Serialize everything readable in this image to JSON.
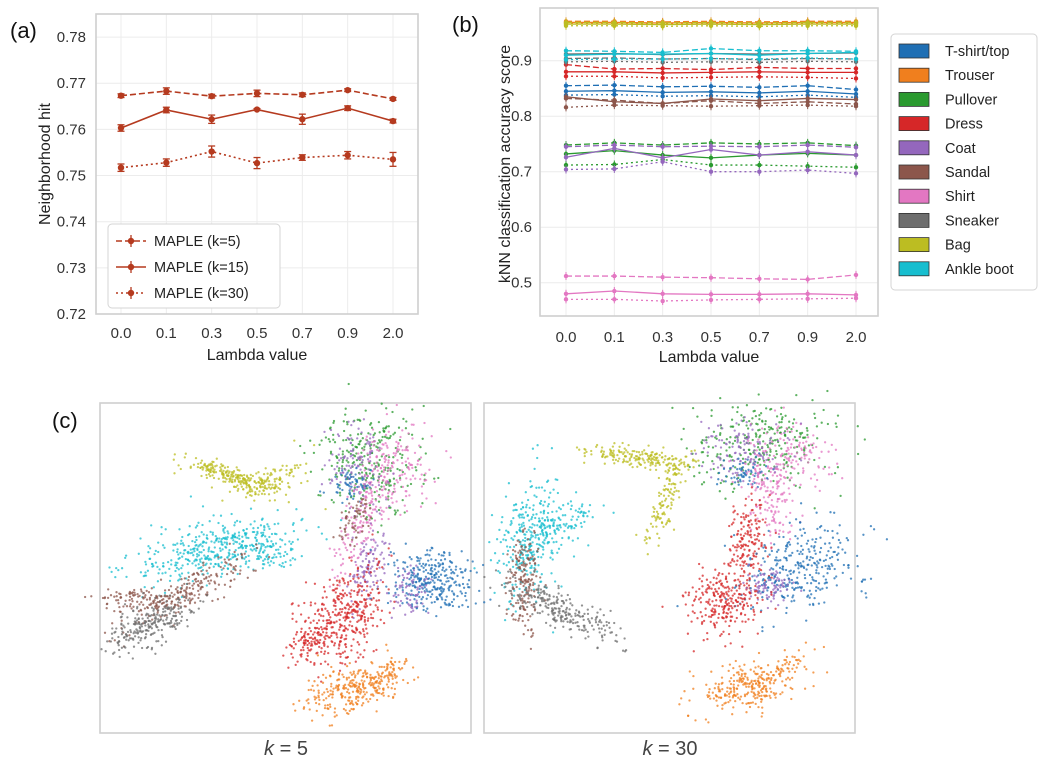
{
  "panels": {
    "a": {
      "label": "(a)"
    },
    "b": {
      "label": "(b)"
    },
    "c": {
      "label": "(c)"
    }
  },
  "chart_data": [
    {
      "type": "line",
      "panel": "(a)",
      "title": "",
      "xlabel": "Lambda value",
      "ylabel": "Neighborhood hit",
      "categories": [
        "0.0",
        "0.1",
        "0.3",
        "0.5",
        "0.7",
        "0.9",
        "2.0"
      ],
      "ylim": [
        0.72,
        0.785
      ],
      "yticks": [
        "0.72",
        "0.73",
        "0.74",
        "0.75",
        "0.76",
        "0.77",
        "0.78"
      ],
      "grid": true,
      "legend_position": "bottom-left",
      "series": [
        {
          "name": "MAPLE (k=5)",
          "style": "dashed",
          "color": "#b53a1f",
          "values": [
            0.7673,
            0.7683,
            0.7672,
            0.7678,
            0.7675,
            0.7685,
            0.7666
          ],
          "errors": [
            0.0004,
            0.0007,
            0.0004,
            0.0007,
            0.0004,
            0.0003,
            0.0003
          ]
        },
        {
          "name": "MAPLE (k=15)",
          "style": "solid",
          "color": "#b53a1f",
          "values": [
            0.7603,
            0.7642,
            0.7622,
            0.7643,
            0.7622,
            0.7646,
            0.7618
          ],
          "errors": [
            0.0007,
            0.0006,
            0.0009,
            0.0002,
            0.0011,
            0.0005,
            0.0004
          ]
        },
        {
          "name": "MAPLE (k=30)",
          "style": "dotted",
          "color": "#b53a1f",
          "values": [
            0.7517,
            0.7528,
            0.7552,
            0.7527,
            0.7539,
            0.7544,
            0.7535
          ],
          "errors": [
            0.0008,
            0.0008,
            0.0012,
            0.0012,
            0.0006,
            0.0008,
            0.0015
          ]
        }
      ]
    },
    {
      "type": "line",
      "panel": "(b)",
      "title": "",
      "xlabel": "Lambda value",
      "ylabel": "kNN classification accuracy score",
      "categories": [
        "0.0",
        "0.1",
        "0.3",
        "0.5",
        "0.7",
        "0.9",
        "2.0"
      ],
      "ylim": [
        0.44,
        0.995
      ],
      "yticks": [
        "0.5",
        "0.6",
        "0.7",
        "0.8",
        "0.9"
      ],
      "grid": true,
      "legend_position": "outside-right",
      "line_styles_note": "each class drawn with dashed (k=5), solid (k=15), dotted (k=30) lines",
      "series": [
        {
          "name": "T-shirt/top",
          "color": "#1f6fb4",
          "k5": [
            0.855,
            0.856,
            0.853,
            0.854,
            0.852,
            0.855,
            0.848
          ],
          "k15": [
            0.845,
            0.846,
            0.843,
            0.844,
            0.842,
            0.845,
            0.84
          ],
          "k30": [
            0.838,
            0.839,
            0.836,
            0.837,
            0.835,
            0.838,
            0.834
          ]
        },
        {
          "name": "Trouser",
          "color": "#f07f1e",
          "k5": [
            0.971,
            0.971,
            0.97,
            0.971,
            0.97,
            0.971,
            0.971
          ],
          "k15": [
            0.969,
            0.969,
            0.968,
            0.969,
            0.968,
            0.969,
            0.969
          ],
          "k30": [
            0.967,
            0.967,
            0.966,
            0.967,
            0.966,
            0.967,
            0.967
          ]
        },
        {
          "name": "Pullover",
          "color": "#2a9a2f",
          "k5": [
            0.748,
            0.752,
            0.748,
            0.752,
            0.75,
            0.752,
            0.747
          ],
          "k15": [
            0.732,
            0.738,
            0.73,
            0.725,
            0.73,
            0.733,
            0.73
          ],
          "k30": [
            0.712,
            0.713,
            0.722,
            0.712,
            0.712,
            0.71,
            0.708
          ]
        },
        {
          "name": "Dress",
          "color": "#d62728",
          "k5": [
            0.893,
            0.885,
            0.886,
            0.884,
            0.888,
            0.886,
            0.886
          ],
          "k15": [
            0.88,
            0.88,
            0.878,
            0.879,
            0.88,
            0.879,
            0.879
          ],
          "k30": [
            0.872,
            0.872,
            0.869,
            0.87,
            0.871,
            0.87,
            0.868
          ]
        },
        {
          "name": "Coat",
          "color": "#9467bd",
          "k5": [
            0.745,
            0.748,
            0.745,
            0.746,
            0.745,
            0.748,
            0.744
          ],
          "k15": [
            0.726,
            0.742,
            0.725,
            0.74,
            0.73,
            0.736,
            0.73
          ],
          "k30": [
            0.704,
            0.705,
            0.718,
            0.7,
            0.7,
            0.703,
            0.697
          ]
        },
        {
          "name": "Sandal",
          "color": "#8c564b",
          "k5": [
            0.832,
            0.829,
            0.823,
            0.828,
            0.823,
            0.826,
            0.822
          ],
          "k15": [
            0.835,
            0.826,
            0.823,
            0.831,
            0.828,
            0.832,
            0.83
          ],
          "k30": [
            0.816,
            0.82,
            0.819,
            0.818,
            0.819,
            0.82,
            0.818
          ]
        },
        {
          "name": "Shirt",
          "color": "#e377c2",
          "k5": [
            0.512,
            0.512,
            0.51,
            0.509,
            0.507,
            0.506,
            0.514
          ],
          "k15": [
            0.48,
            0.485,
            0.48,
            0.479,
            0.479,
            0.48,
            0.478
          ],
          "k30": [
            0.47,
            0.47,
            0.467,
            0.469,
            0.47,
            0.471,
            0.472
          ]
        },
        {
          "name": "Sneaker",
          "color": "#6e6e6e",
          "k5": [
            0.904,
            0.905,
            0.903,
            0.904,
            0.902,
            0.904,
            0.903
          ],
          "k15": [
            0.912,
            0.913,
            0.911,
            0.913,
            0.912,
            0.913,
            0.914
          ],
          "k30": [
            0.898,
            0.899,
            0.897,
            0.898,
            0.897,
            0.899,
            0.898
          ]
        },
        {
          "name": "Bag",
          "color": "#bcbd22",
          "k5": [
            0.969,
            0.969,
            0.968,
            0.969,
            0.968,
            0.969,
            0.969
          ],
          "k15": [
            0.966,
            0.966,
            0.965,
            0.966,
            0.965,
            0.966,
            0.966
          ],
          "k30": [
            0.963,
            0.963,
            0.962,
            0.963,
            0.962,
            0.963,
            0.963
          ]
        },
        {
          "name": "Ankle boot",
          "color": "#17becf",
          "k5": [
            0.918,
            0.917,
            0.915,
            0.922,
            0.918,
            0.918,
            0.917
          ],
          "k15": [
            0.91,
            0.912,
            0.912,
            0.913,
            0.91,
            0.913,
            0.915
          ],
          "k30": [
            0.902,
            0.903,
            0.903,
            0.904,
            0.903,
            0.905,
            0.903
          ]
        }
      ]
    },
    {
      "type": "scatter",
      "panel": "(c)",
      "title": "",
      "subplots": [
        {
          "caption_var": "k",
          "caption_val": " = 5"
        },
        {
          "caption_var": "k",
          "caption_val": " = 30"
        }
      ],
      "cluster_colors": {
        "T-shirt/top": "#1f6fb4",
        "Trouser": "#f07f1e",
        "Pullover": "#2a9a2f",
        "Dress": "#d62728",
        "Coat": "#9467bd",
        "Sandal": "#8c564b",
        "Shirt": "#e377c2",
        "Sneaker": "#6e6e6e",
        "Bag": "#bcbd22",
        "Ankle boot": "#17becf"
      }
    }
  ]
}
